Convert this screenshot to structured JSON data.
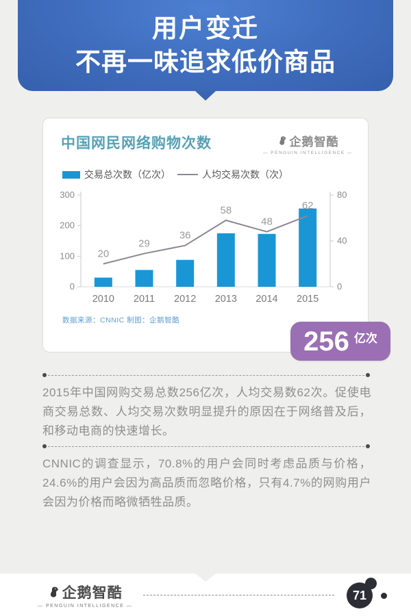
{
  "header": {
    "title_line1": "用户变迁",
    "title_line2": "不再一味追求低价商品"
  },
  "card": {
    "title": "中国网民网络购物次数",
    "brand_name": "企鹅智酷",
    "brand_subtitle": "— PENGUIN INTELLIGENCE —",
    "source": "数据来源：CNNIC 制图：企鹅智酷"
  },
  "chart_data": {
    "type": "bar",
    "title": "中国网民网络购物次数",
    "categories": [
      "2010",
      "2011",
      "2012",
      "2013",
      "2014",
      "2015"
    ],
    "series": [
      {
        "name": "交易总次数（亿次）",
        "type": "bar",
        "axis": "left",
        "color": "#1a96d5",
        "values": [
          30,
          55,
          88,
          175,
          173,
          256
        ]
      },
      {
        "name": "人均交易次数（次）",
        "type": "line",
        "axis": "right",
        "color": "#8d8593",
        "values": [
          20,
          29,
          36,
          58,
          48,
          62
        ],
        "labels_shown": true
      }
    ],
    "left_axis": {
      "range": [
        0,
        300
      ],
      "ticks": [
        0,
        100,
        200,
        300
      ]
    },
    "right_axis": {
      "range": [
        0,
        80
      ],
      "ticks": [
        0,
        40,
        80
      ]
    },
    "grid": false,
    "legend_position": "top"
  },
  "legend": {
    "bar_label": "交易总次数（亿次）",
    "line_label": "人均交易次数（次）"
  },
  "badge": {
    "value": "256",
    "unit": "亿次"
  },
  "paragraphs": [
    "2015年中国网购交易总数256亿次，人均交易数62次。促使电商交易总数、人均交易次数明显提升的原因在于网络普及后，和移动电商的快速增长。",
    "CNNIC的调查显示，70.8%的用户会同时考虑品质与价格，24.6%的用户会因为高品质而忽略价格，只有4.7%的网购用户会因为价格而略微牺牲品质。"
  ],
  "footer": {
    "brand_name": "企鹅智酷",
    "brand_subtitle": "— PENGUIN INTELLIGENCE —",
    "page_number": "71"
  }
}
